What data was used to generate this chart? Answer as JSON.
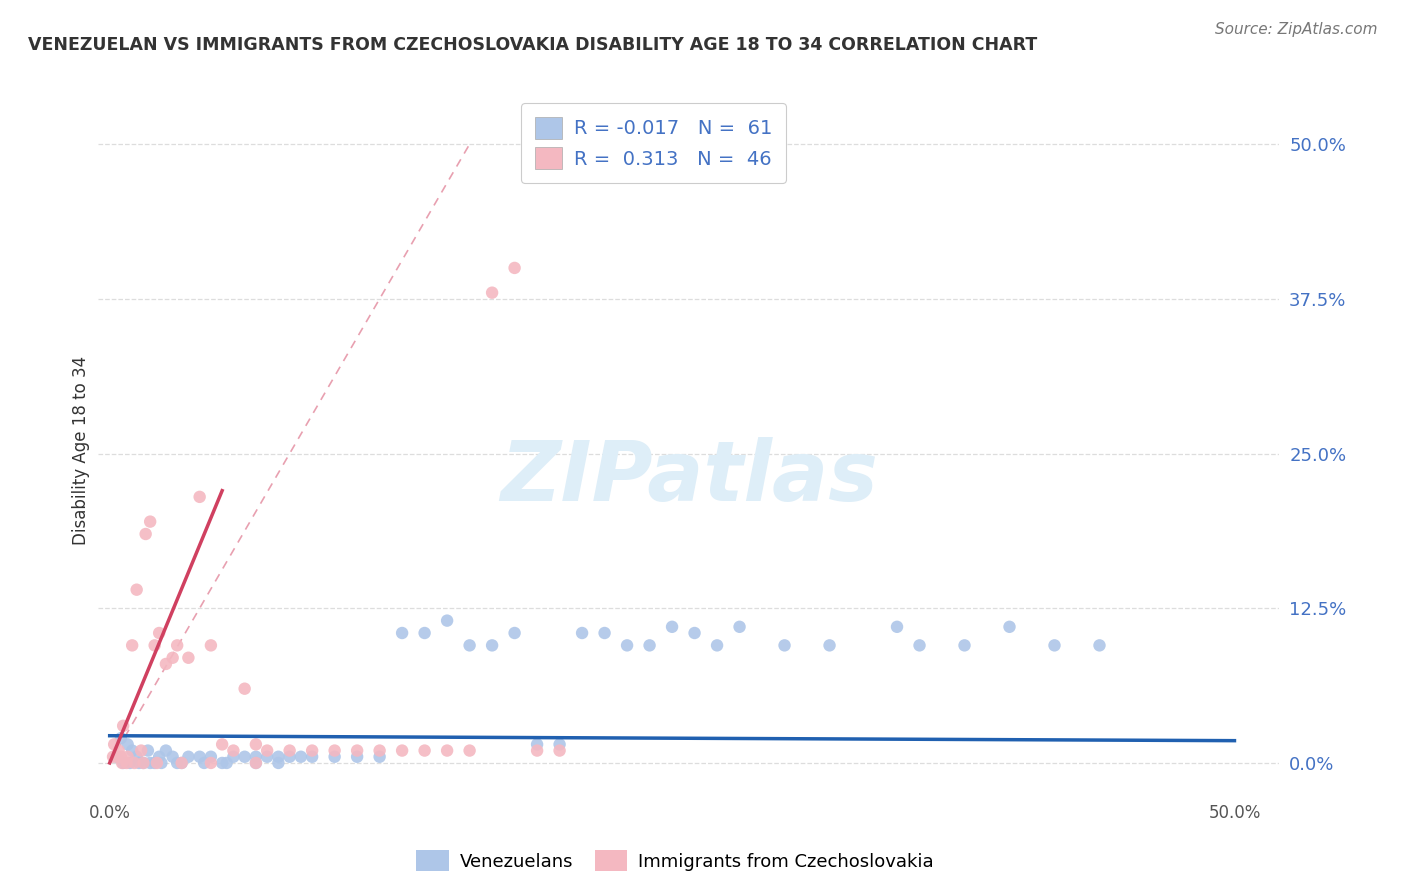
{
  "title": "VENEZUELAN VS IMMIGRANTS FROM CZECHOSLOVAKIA DISABILITY AGE 18 TO 34 CORRELATION CHART",
  "source": "Source: ZipAtlas.com",
  "ylabel": "Disability Age 18 to 34",
  "ytick_labels": [
    "0.0%",
    "12.5%",
    "25.0%",
    "37.5%",
    "50.0%"
  ],
  "ytick_values": [
    0.0,
    12.5,
    25.0,
    37.5,
    50.0
  ],
  "xlim": [
    -0.5,
    52.0
  ],
  "ylim": [
    -2.5,
    53.0
  ],
  "legend1_color": "#aec6e8",
  "legend2_color": "#f4b8c1",
  "legend1_R": "-0.017",
  "legend1_N": "61",
  "legend2_R": "0.313",
  "legend2_N": "46",
  "blue_scatter_color": "#aec6e8",
  "pink_scatter_color": "#f4b8c1",
  "blue_line_color": "#2060b0",
  "pink_line_color": "#d04060",
  "diagonal_color": "#e0a0b0",
  "background_color": "#ffffff",
  "grid_color": "#dddddd",
  "blue_x": [
    0.5,
    0.8,
    1.0,
    1.2,
    1.5,
    1.7,
    2.0,
    2.2,
    2.5,
    2.8,
    3.0,
    3.5,
    4.0,
    4.5,
    5.0,
    5.5,
    6.0,
    6.5,
    7.0,
    7.5,
    8.0,
    8.5,
    9.0,
    10.0,
    11.0,
    12.0,
    13.0,
    14.0,
    15.0,
    16.0,
    17.0,
    18.0,
    19.0,
    20.0,
    21.0,
    22.0,
    23.0,
    24.0,
    25.0,
    26.0,
    27.0,
    28.0,
    30.0,
    32.0,
    35.0,
    38.0,
    40.0,
    42.0,
    44.0,
    0.3,
    0.6,
    0.9,
    1.3,
    1.8,
    2.3,
    3.2,
    4.2,
    5.2,
    6.5,
    7.5,
    36.0
  ],
  "blue_y": [
    2.0,
    1.5,
    1.0,
    0.5,
    0.0,
    1.0,
    0.0,
    0.5,
    1.0,
    0.5,
    0.0,
    0.5,
    0.5,
    0.5,
    0.0,
    0.5,
    0.5,
    0.5,
    0.5,
    0.5,
    0.5,
    0.5,
    0.5,
    0.5,
    0.5,
    0.5,
    10.5,
    10.5,
    11.5,
    9.5,
    9.5,
    10.5,
    1.5,
    1.5,
    10.5,
    10.5,
    9.5,
    9.5,
    11.0,
    10.5,
    9.5,
    11.0,
    9.5,
    9.5,
    11.0,
    9.5,
    11.0,
    9.5,
    9.5,
    0.5,
    0.0,
    0.0,
    0.0,
    0.0,
    0.0,
    0.0,
    0.0,
    0.0,
    0.0,
    0.0,
    9.5
  ],
  "pink_x": [
    0.2,
    0.4,
    0.5,
    0.6,
    0.8,
    1.0,
    1.2,
    1.4,
    1.6,
    1.8,
    2.0,
    2.2,
    2.5,
    2.8,
    3.0,
    3.5,
    4.0,
    4.5,
    5.0,
    5.5,
    6.0,
    6.5,
    7.0,
    8.0,
    9.0,
    10.0,
    11.0,
    12.0,
    13.0,
    14.0,
    15.0,
    16.0,
    17.0,
    18.0,
    19.0,
    20.0,
    0.15,
    0.35,
    0.55,
    0.75,
    1.1,
    1.5,
    2.1,
    3.2,
    4.5,
    6.5
  ],
  "pink_y": [
    1.5,
    1.0,
    0.5,
    3.0,
    0.5,
    9.5,
    14.0,
    1.0,
    18.5,
    19.5,
    9.5,
    10.5,
    8.0,
    8.5,
    9.5,
    8.5,
    21.5,
    9.5,
    1.5,
    1.0,
    6.0,
    1.5,
    1.0,
    1.0,
    1.0,
    1.0,
    1.0,
    1.0,
    1.0,
    1.0,
    1.0,
    1.0,
    38.0,
    40.0,
    1.0,
    1.0,
    0.5,
    0.5,
    0.0,
    0.0,
    0.0,
    0.0,
    0.0,
    0.0,
    0.0,
    0.0
  ],
  "scatter_size": 80
}
